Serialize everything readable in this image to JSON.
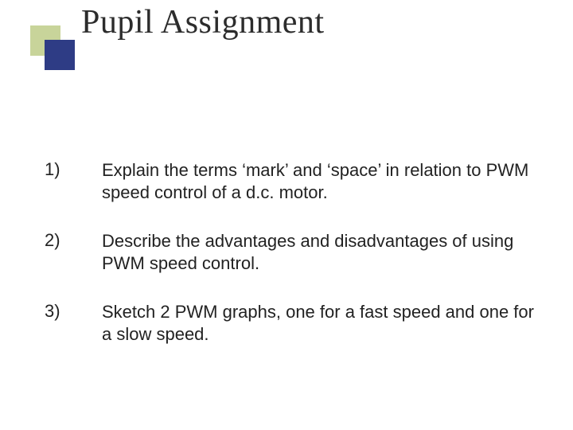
{
  "title": "Pupil Assignment",
  "deco": {
    "back_color": "#c8d49a",
    "front_color": "#2e3c85"
  },
  "items": [
    {
      "num": "1)",
      "text": "Explain the terms ‘mark’ and ‘space’ in relation to PWM speed control of a d.c. motor."
    },
    {
      "num": "2)",
      "text": "Describe the advantages and disadvantages of using PWM speed control."
    },
    {
      "num": "3)",
      "text": "Sketch 2 PWM graphs, one for a fast speed and one for a slow speed."
    }
  ]
}
